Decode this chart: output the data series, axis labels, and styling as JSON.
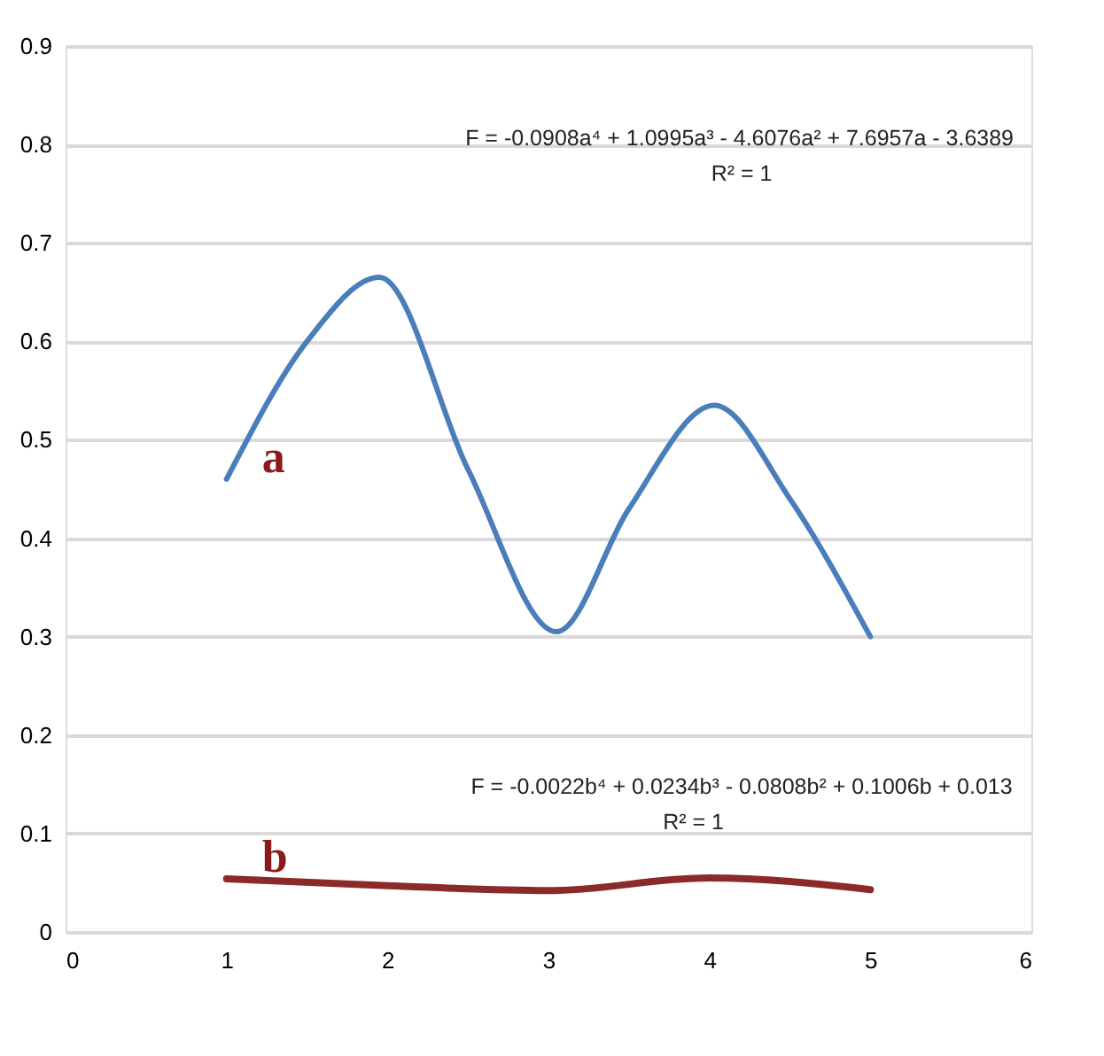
{
  "chart_data": {
    "type": "line",
    "x": [
      1,
      1.5,
      1.95,
      2.5,
      3.05,
      3.5,
      4.03,
      4.5,
      5
    ],
    "series": [
      {
        "name": "a",
        "color": "#4a7ebb",
        "values": [
          0.46,
          0.6,
          0.665,
          0.47,
          0.305,
          0.43,
          0.535,
          0.44,
          0.3
        ]
      },
      {
        "name": "b",
        "color": "#8b2a2a",
        "x": [
          1,
          2,
          3,
          4,
          5
        ],
        "values": [
          0.054,
          0.047,
          0.042,
          0.055,
          0.043
        ]
      }
    ],
    "annotations": [
      "F = -0.0908a⁴ + 1.0995a³ - 4.6076a² + 7.6957a - 3.6389",
      "R² = 1",
      "F = -0.0022b⁴ + 0.0234b³ - 0.0808b² + 0.1006b + 0.013",
      "R² = 1"
    ],
    "xlim": [
      0,
      6
    ],
    "xticks": [
      0,
      1,
      2,
      3,
      4,
      5,
      6
    ],
    "ylim": [
      0,
      0.9
    ],
    "yticks": [
      0,
      0.1,
      0.2,
      0.3,
      0.4,
      0.5,
      0.6,
      0.7,
      0.8,
      0.9
    ],
    "grid": "y",
    "marker": "none",
    "line_style": "solid"
  }
}
